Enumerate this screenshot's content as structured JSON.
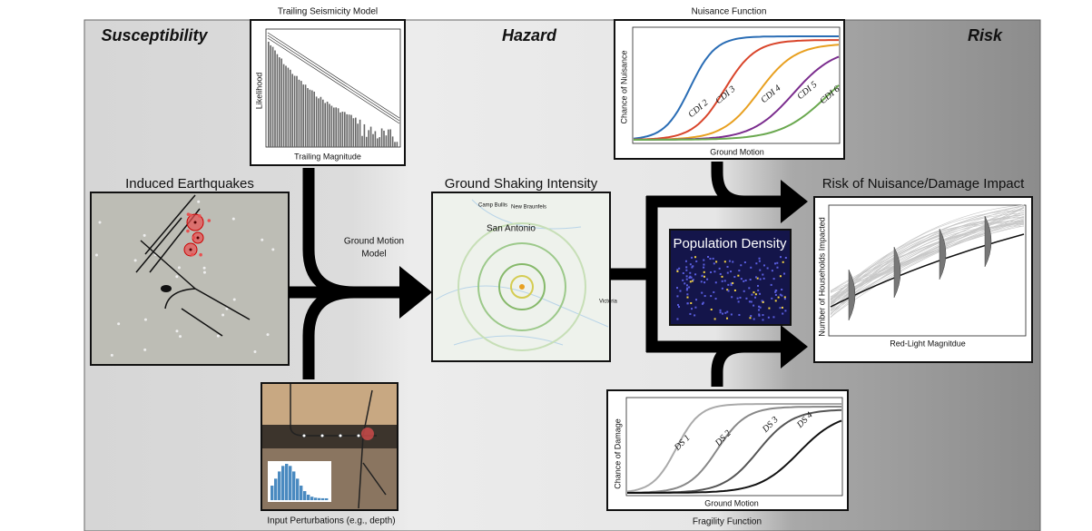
{
  "header": {
    "susceptibility": "Susceptibility",
    "hazard": "Hazard",
    "risk": "Risk"
  },
  "panels": {
    "trailing_seismicity": {
      "title": "Trailing Seismicity Model",
      "y_label": "Likelihood",
      "x_label": "Trailing Magnitude"
    },
    "nuisance": {
      "title": "Nuisance Function",
      "y_label": "Chance of Nuisance",
      "x_label": "Ground Motion",
      "curves": [
        "CDI 2",
        "CDI 3",
        "CDI 4",
        "CDI 5",
        "CDI 6"
      ]
    },
    "induced": {
      "title": "Induced Earthquakes"
    },
    "ground_motion_model": {
      "lines": [
        "Ground Motion",
        "Model"
      ]
    },
    "shaking": {
      "title": "Ground Shaking Intensity",
      "places": [
        "Camp Bullis",
        "New Braunfels",
        "San Antonio",
        "Victoria"
      ]
    },
    "population": {
      "title": "Population Density"
    },
    "risk_impact": {
      "title": "Risk of Nuisance/Damage Impact",
      "y_label": "Number of Households Impacted",
      "x_label": "Red-Light Magnitdue"
    },
    "input": {
      "caption": "Input Perturbations (e.g., depth)"
    },
    "fragility": {
      "title": "Fragility Function",
      "y_label": "Chance of Damage",
      "x_label": "Ground Motion",
      "curves": [
        "DS 1",
        "DS 2",
        "DS 3",
        "DS 4"
      ]
    }
  }
}
